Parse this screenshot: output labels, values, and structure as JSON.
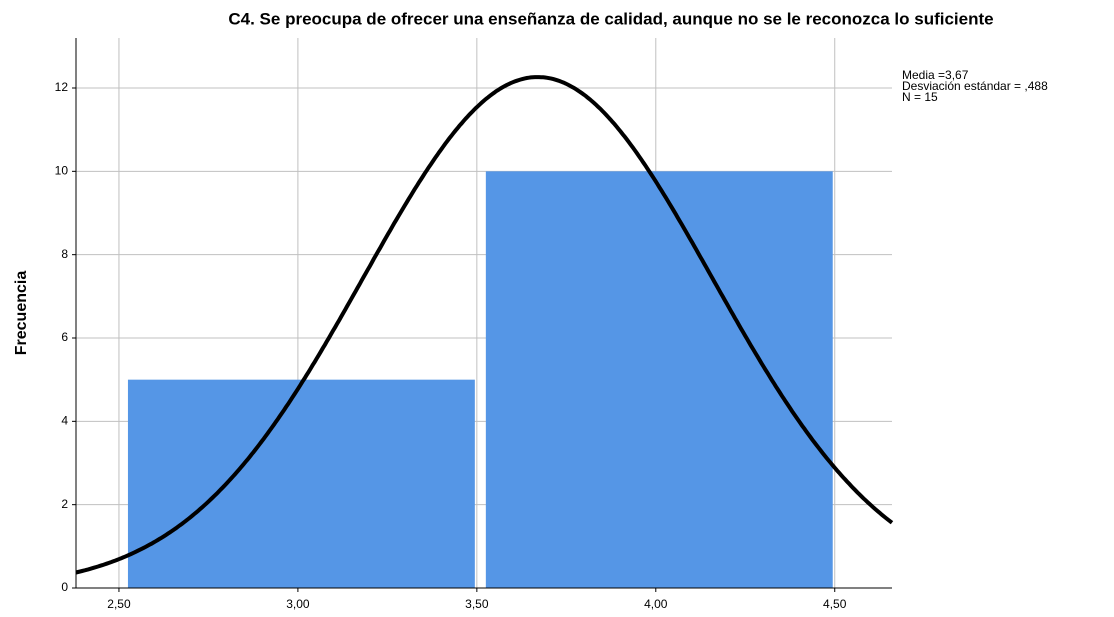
{
  "chart_data": {
    "type": "histogram",
    "title": "C4. Se preocupa de ofrecer una enseñanza de calidad, aunque  no se le reconozca lo suficiente",
    "ylabel": "Frecuencia",
    "bins": [
      2.5,
      3.5,
      4.5
    ],
    "values": [
      5,
      10
    ],
    "color": "#5596e6",
    "xlim": [
      2.38,
      4.66
    ],
    "xticks": [
      {
        "value": 2.5,
        "label": "2,50"
      },
      {
        "value": 3,
        "label": "3,00"
      },
      {
        "value": 3.5,
        "label": "3,50"
      },
      {
        "value": 4,
        "label": "4,00"
      },
      {
        "value": 4.5,
        "label": "4,50"
      }
    ],
    "ylim": [
      0,
      13.2
    ],
    "yticks": [
      0,
      2,
      4,
      6,
      8,
      10,
      12
    ],
    "grid": true,
    "normal_curve": {
      "mean": 3.67,
      "sd": 0.488,
      "n": 15,
      "color": "#000000",
      "labels": [
        "Media =3,67",
        "Desviación estándar = ,488",
        "N = 15"
      ]
    }
  }
}
